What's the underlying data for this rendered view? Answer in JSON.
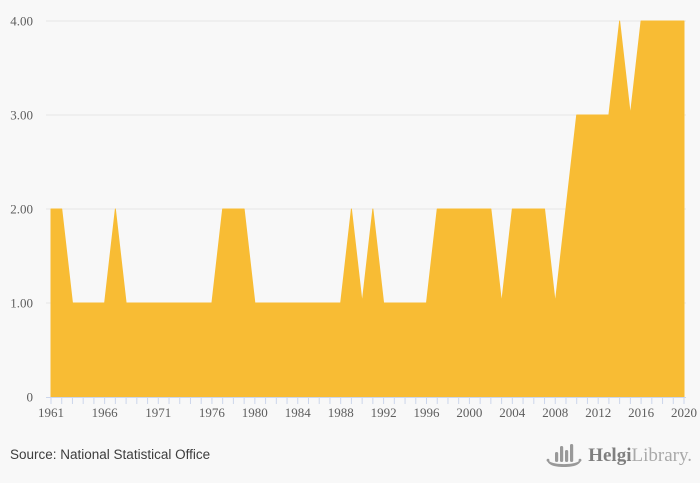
{
  "chart_data": {
    "type": "area",
    "title": "",
    "xlabel": "",
    "ylabel": "",
    "x": [
      1961,
      1962,
      1963,
      1964,
      1965,
      1966,
      1967,
      1968,
      1969,
      1970,
      1971,
      1972,
      1973,
      1974,
      1975,
      1976,
      1977,
      1978,
      1979,
      1980,
      1981,
      1982,
      1983,
      1984,
      1985,
      1986,
      1987,
      1988,
      1989,
      1990,
      1991,
      1992,
      1993,
      1994,
      1995,
      1996,
      1997,
      1998,
      1999,
      2000,
      2001,
      2002,
      2003,
      2004,
      2005,
      2006,
      2007,
      2008,
      2009,
      2010,
      2011,
      2012,
      2013,
      2014,
      2015,
      2016,
      2017,
      2018,
      2019,
      2020
    ],
    "values": [
      2,
      2,
      1,
      1,
      1,
      1,
      2,
      1,
      1,
      1,
      1,
      1,
      1,
      1,
      1,
      1,
      2,
      2,
      2,
      1,
      1,
      1,
      1,
      1,
      1,
      1,
      1,
      1,
      2,
      1,
      2,
      1,
      1,
      1,
      1,
      1,
      2,
      2,
      2,
      2,
      2,
      2,
      1,
      2,
      2,
      2,
      2,
      1,
      2,
      3,
      3,
      3,
      3,
      4,
      3,
      4,
      4,
      4,
      4,
      4
    ],
    "x_tick_labels": [
      "1961",
      "1966",
      "1971",
      "1976",
      "1980",
      "1984",
      "1988",
      "1992",
      "1996",
      "2000",
      "2004",
      "2008",
      "2012",
      "2016",
      "2020"
    ],
    "y_tick_values": [
      0,
      1,
      2,
      3,
      4
    ],
    "y_tick_labels": [
      "0",
      "1.00",
      "2.00",
      "3.00",
      "4.00"
    ],
    "ylim": [
      0,
      4
    ],
    "grid": "horizontal",
    "legend": false
  },
  "colors": {
    "background": "#f8f8f8",
    "area_fill": "#f8bc34",
    "gridline": "#e6e6e6",
    "axis_line": "#ccd6eb",
    "tick_label": "#5e5e5e",
    "source_text": "#3d3d3d",
    "logo_text_bold": "#7f7f7f",
    "logo_text_light": "#a9a9a9",
    "logo_icon": "#999999"
  },
  "footer": {
    "source": "Source: National Statistical Office",
    "logo": {
      "brand_bold": "Helgi",
      "brand_light": "Library.",
      "icon": "helgi-boat-icon"
    }
  }
}
